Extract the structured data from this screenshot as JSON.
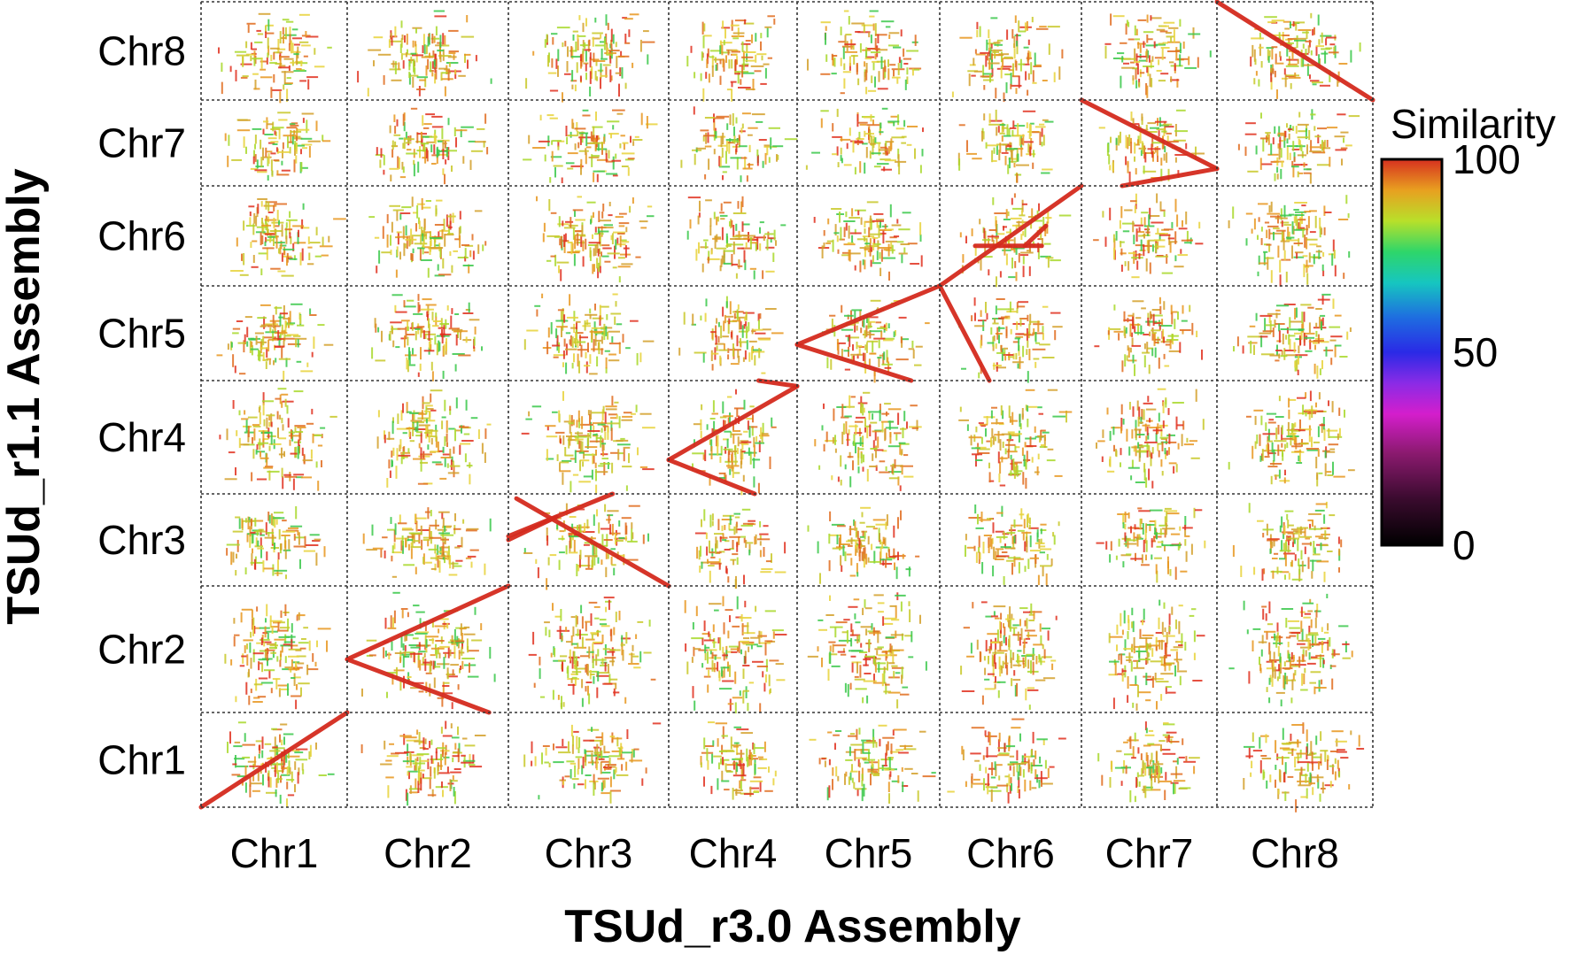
{
  "chart_data": {
    "type": "scatter",
    "subtype": "dot-plot",
    "title": "",
    "xlabel": "TSUd_r3.0 Assembly",
    "ylabel": "TSUd_r1.1 Assembly",
    "x_categories": [
      "Chr1",
      "Chr2",
      "Chr3",
      "Chr4",
      "Chr5",
      "Chr6",
      "Chr7",
      "Chr8"
    ],
    "y_categories": [
      "Chr1",
      "Chr2",
      "Chr3",
      "Chr4",
      "Chr5",
      "Chr6",
      "Chr7",
      "Chr8"
    ],
    "grid": true,
    "legend": {
      "title": "Similarity",
      "placement": "right",
      "ticks": [
        {
          "value": 100,
          "label": "100"
        },
        {
          "value": 50,
          "label": "50"
        },
        {
          "value": 0,
          "label": "0"
        }
      ],
      "stops": [
        {
          "value": 100,
          "color": "#d7301f"
        },
        {
          "value": 92,
          "color": "#e8a020"
        },
        {
          "value": 84,
          "color": "#b8e02a"
        },
        {
          "value": 76,
          "color": "#2ed66a"
        },
        {
          "value": 68,
          "color": "#16c6c0"
        },
        {
          "value": 59,
          "color": "#1e6de0"
        },
        {
          "value": 50,
          "color": "#2a2ae6"
        },
        {
          "value": 42,
          "color": "#8a2be6"
        },
        {
          "value": 34,
          "color": "#d41ecc"
        },
        {
          "value": 24,
          "color": "#8c1a70"
        },
        {
          "value": 12,
          "color": "#3a0b2e"
        },
        {
          "value": 0,
          "color": "#000000"
        }
      ]
    },
    "colors": {
      "alignment_line": "#d42a1e",
      "noise": [
        "#e0301e",
        "#e06c1e",
        "#e8961e",
        "#d4a02a",
        "#c8c828",
        "#a8d82a",
        "#e8d23a",
        "#3ac84a"
      ],
      "grid": "#333333"
    },
    "alignments": [
      {
        "x_chr": "Chr1",
        "y_chr": "Chr1",
        "segments": [
          [
            0.0,
            0.0,
            1.0,
            1.0
          ]
        ]
      },
      {
        "x_chr": "Chr2",
        "y_chr": "Chr2",
        "segments": [
          [
            0.0,
            0.42,
            1.0,
            1.0
          ],
          [
            0.0,
            0.42,
            0.88,
            0.0
          ]
        ]
      },
      {
        "x_chr": "Chr3",
        "y_chr": "Chr3",
        "segments": [
          [
            0.0,
            0.54,
            0.65,
            1.0
          ],
          [
            0.05,
            0.95,
            1.0,
            0.0
          ],
          [
            0.0,
            0.5,
            0.3,
            0.75
          ]
        ]
      },
      {
        "x_chr": "Chr4",
        "y_chr": "Chr4",
        "segments": [
          [
            0.0,
            0.3,
            1.0,
            0.95
          ],
          [
            0.0,
            0.3,
            0.67,
            0.0
          ],
          [
            0.7,
            1.0,
            1.0,
            0.95
          ]
        ]
      },
      {
        "x_chr": "Chr5",
        "y_chr": "Chr5",
        "segments": [
          [
            0.0,
            0.38,
            1.0,
            1.0
          ],
          [
            0.0,
            0.38,
            0.8,
            0.0
          ]
        ]
      },
      {
        "x_chr": "Chr6",
        "y_chr": "Chr5",
        "segments": [
          [
            0.0,
            1.0,
            0.35,
            0.0
          ]
        ]
      },
      {
        "x_chr": "Chr6",
        "y_chr": "Chr6",
        "segments": [
          [
            0.0,
            0.0,
            1.0,
            1.0
          ],
          [
            0.25,
            0.4,
            0.72,
            0.4
          ],
          [
            0.6,
            0.4,
            0.75,
            0.6
          ]
        ]
      },
      {
        "x_chr": "Chr7",
        "y_chr": "Chr7",
        "segments": [
          [
            0.0,
            1.0,
            1.0,
            0.2
          ],
          [
            0.3,
            0.0,
            1.0,
            0.2
          ]
        ]
      },
      {
        "x_chr": "Chr8",
        "y_chr": "Chr8",
        "segments": [
          [
            0.0,
            1.0,
            1.0,
            0.0
          ]
        ]
      }
    ]
  }
}
